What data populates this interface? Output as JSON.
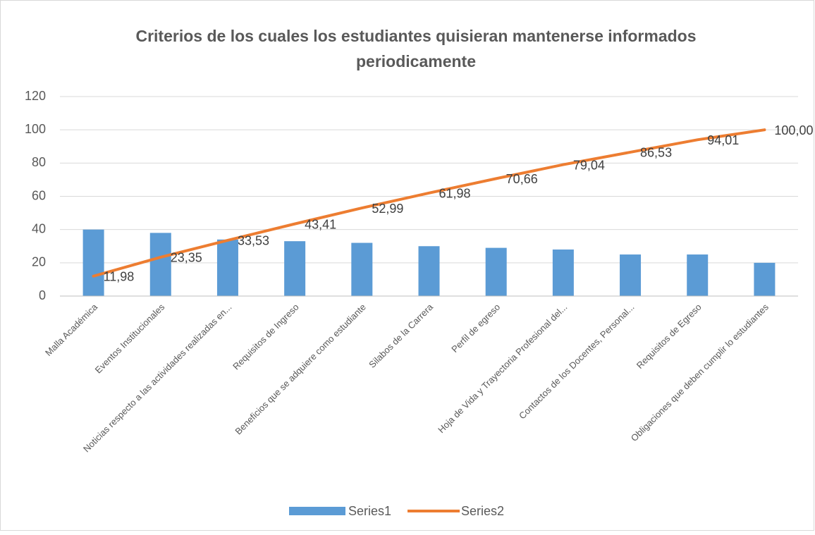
{
  "chart_data": {
    "type": "combo",
    "title": [
      "Criterios de los cuales los estudiantes quisieran mantenerse informados",
      "periodicamente"
    ],
    "categories": [
      "Malla Académica",
      "Eventos Institucionales",
      "Noticias respecto a las actividades realizadas en...",
      "Requisitos de Ingreso",
      "Beneficios que se adquiere como estudiante",
      "Silabos de la Carrera",
      "Perfil de egreso",
      "Hoja de Vida y Trayectoria Profesional del...",
      "Contactos de los Docentes, Personal...",
      "Requisitos de Egreso",
      "Obligaciones que deben cumplir lo estudiantes"
    ],
    "series": [
      {
        "name": "Series1",
        "type": "bar",
        "color": "#5b9bd5",
        "values": [
          40,
          38,
          34,
          33,
          32,
          30,
          29,
          28,
          25,
          25,
          20
        ]
      },
      {
        "name": "Series2",
        "type": "line",
        "color": "#ed7d31",
        "values": [
          11.98,
          23.35,
          33.53,
          43.41,
          52.99,
          61.98,
          70.66,
          79.04,
          86.53,
          94.01,
          100.0
        ],
        "value_labels": [
          "11,98",
          "23,35",
          "33,53",
          "43,41",
          "52,99",
          "61,98",
          "70,66",
          "79,04",
          "86,53",
          "94,01",
          "100,00"
        ]
      }
    ],
    "ylim": [
      0,
      120
    ],
    "yticks": [
      0,
      20,
      40,
      60,
      80,
      100,
      120
    ],
    "grid": true,
    "legend": "bottom"
  }
}
